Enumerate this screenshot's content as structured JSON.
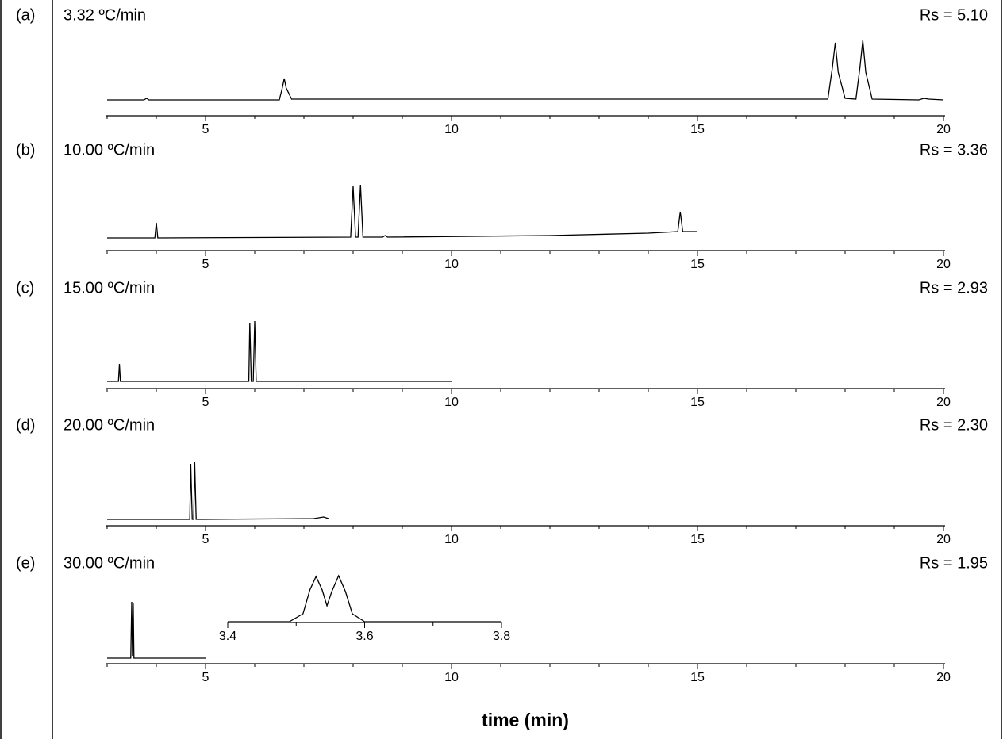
{
  "chart_data": [
    {
      "type": "line",
      "label": "(a)",
      "title": "3.32 ºC/min",
      "annotation": "Rs = 5.10",
      "color": "#000000",
      "x": [
        3,
        3.75,
        3.8,
        3.85,
        6.5,
        6.56,
        6.6,
        6.64,
        6.75,
        17.65,
        17.74,
        17.8,
        17.86,
        18.0,
        18.22,
        18.3,
        18.36,
        18.42,
        18.55,
        19.5,
        19.6,
        19.7,
        20
      ],
      "values": [
        20,
        20,
        22,
        20,
        20,
        35,
        47,
        35,
        21,
        21,
        60,
        92,
        55,
        22,
        21,
        60,
        95,
        55,
        21,
        20,
        22,
        21,
        20
      ],
      "xlim": [
        3,
        20
      ],
      "ylim": [
        0,
        100
      ],
      "xticks": [
        5,
        10,
        15,
        20
      ],
      "minor_xticks": [
        3,
        4,
        6,
        7,
        8,
        9,
        11,
        12,
        13,
        14,
        16,
        17,
        18,
        19
      ]
    },
    {
      "type": "line",
      "label": "(b)",
      "title": "10.00 ºC/min",
      "annotation": "Rs = 3.36",
      "color": "#000000",
      "x": [
        3,
        3.97,
        4.0,
        4.03,
        7.95,
        8.0,
        8.05,
        8.1,
        8.15,
        8.2,
        8.6,
        8.65,
        8.7,
        12,
        14,
        14.6,
        14.65,
        14.7,
        15
      ],
      "values": [
        16,
        16,
        35,
        16,
        17,
        81,
        17,
        17,
        83,
        17,
        17,
        19,
        17,
        19,
        22,
        24,
        49,
        24,
        24
      ],
      "xlim": [
        3,
        20
      ],
      "ylim": [
        0,
        100
      ],
      "xticks": [
        5,
        10,
        15,
        20
      ],
      "minor_xticks": [
        3,
        4,
        6,
        7,
        8,
        9,
        11,
        12,
        13,
        14,
        16,
        17,
        18,
        19
      ]
    },
    {
      "type": "line",
      "label": "(c)",
      "title": "15.00 ºC/min",
      "annotation": "Rs = 2.93",
      "color": "#000000",
      "x": [
        3,
        3.23,
        3.25,
        3.27,
        5.88,
        5.9,
        5.93,
        5.97,
        6.0,
        6.03,
        10
      ],
      "values": [
        9,
        9,
        31,
        9,
        9,
        83,
        9,
        9,
        85,
        9,
        9
      ],
      "xlim": [
        3,
        20
      ],
      "ylim": [
        0,
        100
      ],
      "xticks": [
        5,
        10,
        15,
        20
      ],
      "minor_xticks": [
        3,
        4,
        6,
        7,
        8,
        9,
        11,
        12,
        13,
        14,
        16,
        17,
        18,
        19
      ]
    },
    {
      "type": "line",
      "label": "(d)",
      "title": "20.00 ºC/min",
      "annotation": "Rs = 2.30",
      "color": "#000000",
      "x": [
        3,
        4.68,
        4.7,
        4.73,
        4.76,
        4.78,
        4.81,
        7.2,
        7.4,
        7.5
      ],
      "values": [
        8,
        8,
        78,
        8,
        8,
        80,
        8,
        9,
        11,
        9
      ],
      "xlim": [
        3,
        20
      ],
      "ylim": [
        0,
        100
      ],
      "xticks": [
        5,
        10,
        15,
        20
      ],
      "minor_xticks": [
        3,
        4,
        6,
        7,
        8,
        9,
        11,
        12,
        13,
        14,
        16,
        17,
        18,
        19
      ]
    },
    {
      "type": "line",
      "label": "(e)",
      "title": "30.00 ºC/min",
      "annotation": "Rs = 1.95",
      "color": "#000000",
      "xlabel": "time (min)",
      "x": [
        3,
        3.48,
        3.5,
        3.515,
        3.53,
        3.545,
        5
      ],
      "values": [
        7,
        7,
        78,
        10,
        77,
        7,
        7
      ],
      "xlim": [
        3,
        20
      ],
      "ylim": [
        0,
        100
      ],
      "xticks": [
        5,
        10,
        15,
        20
      ],
      "minor_xticks": [
        3,
        4,
        6,
        7,
        8,
        9,
        11,
        12,
        13,
        14,
        16,
        17,
        18,
        19
      ],
      "inset": {
        "type": "line",
        "color": "#000000",
        "x": [
          3.4,
          3.49,
          3.51,
          3.52,
          3.529,
          3.538,
          3.545,
          3.552,
          3.562,
          3.572,
          3.582,
          3.6,
          3.8
        ],
        "values": [
          0,
          0,
          10,
          40,
          57,
          40,
          20,
          38,
          58,
          38,
          10,
          0,
          0
        ],
        "xlim": [
          3.4,
          3.8
        ],
        "ylim": [
          0,
          60
        ],
        "xticks": [
          3.4,
          3.6,
          3.8
        ],
        "minor_xticks": [
          3.5,
          3.7
        ]
      }
    }
  ]
}
